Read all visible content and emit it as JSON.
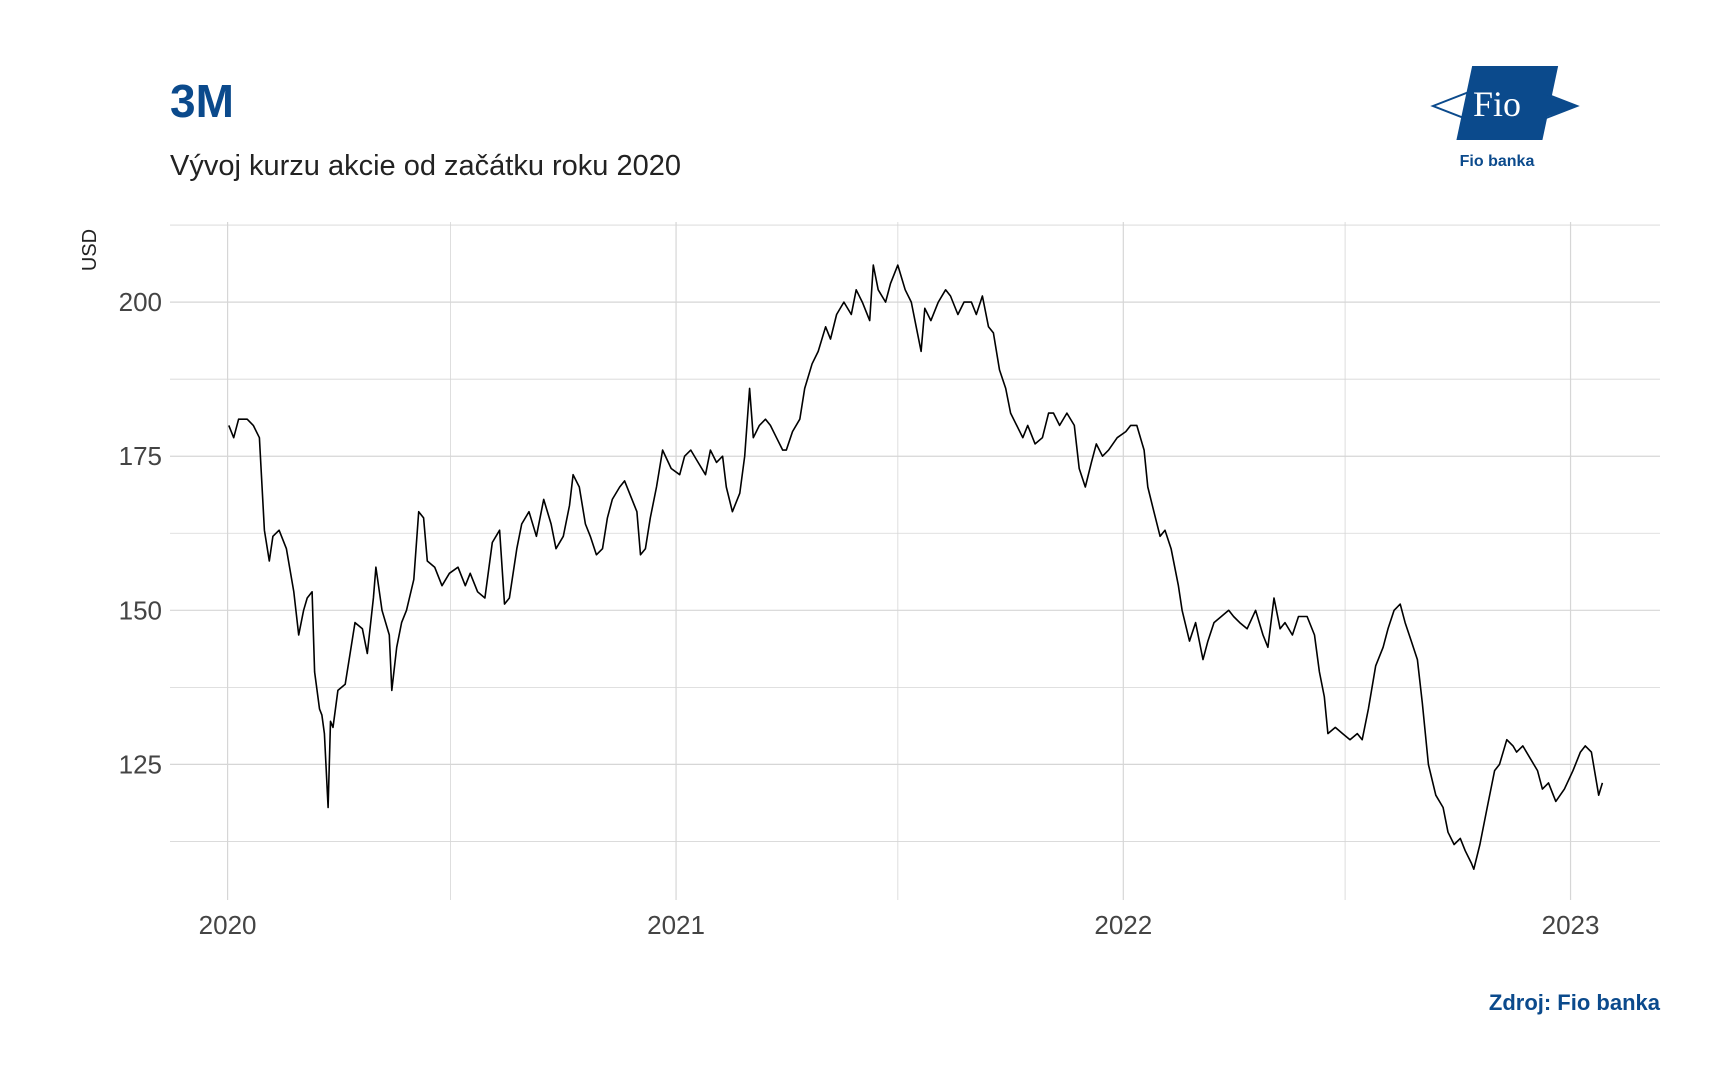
{
  "title": "3M",
  "subtitle": "Vývoj kurzu akcie od začátku roku 2020",
  "source": "Zdroj: Fio banka",
  "logo": {
    "mark_text": "Fio",
    "caption": "Fio banka",
    "brand_color": "#0b4a8c"
  },
  "chart_data": {
    "type": "line",
    "title": "3M",
    "subtitle": "Vývoj kurzu akcie od začátku roku 2020",
    "ylabel": "USD",
    "xlabel": "",
    "x_ticks": [
      "2020",
      "2021",
      "2022",
      "2023"
    ],
    "y_ticks": [
      125,
      150,
      175,
      200
    ],
    "xlim": [
      "2019-11-15",
      "2023-03-15"
    ],
    "ylim": [
      103,
      213
    ],
    "grid": true,
    "line_color": "#000000",
    "series": [
      {
        "points": [
          [
            "2020-01-02",
            180
          ],
          [
            "2020-01-06",
            178
          ],
          [
            "2020-01-10",
            181
          ],
          [
            "2020-01-17",
            181
          ],
          [
            "2020-01-22",
            180
          ],
          [
            "2020-01-27",
            178
          ],
          [
            "2020-01-31",
            163
          ],
          [
            "2020-02-04",
            158
          ],
          [
            "2020-02-07",
            162
          ],
          [
            "2020-02-12",
            163
          ],
          [
            "2020-02-18",
            160
          ],
          [
            "2020-02-24",
            153
          ],
          [
            "2020-02-28",
            146
          ],
          [
            "2020-03-03",
            150
          ],
          [
            "2020-03-06",
            152
          ],
          [
            "2020-03-10",
            153
          ],
          [
            "2020-03-12",
            140
          ],
          [
            "2020-03-16",
            134
          ],
          [
            "2020-03-18",
            133
          ],
          [
            "2020-03-20",
            130
          ],
          [
            "2020-03-23",
            118
          ],
          [
            "2020-03-25",
            132
          ],
          [
            "2020-03-27",
            131
          ],
          [
            "2020-03-31",
            137
          ],
          [
            "2020-04-06",
            138
          ],
          [
            "2020-04-10",
            143
          ],
          [
            "2020-04-14",
            148
          ],
          [
            "2020-04-20",
            147
          ],
          [
            "2020-04-24",
            143
          ],
          [
            "2020-04-29",
            152
          ],
          [
            "2020-05-01",
            157
          ],
          [
            "2020-05-06",
            150
          ],
          [
            "2020-05-12",
            146
          ],
          [
            "2020-05-14",
            137
          ],
          [
            "2020-05-18",
            144
          ],
          [
            "2020-05-22",
            148
          ],
          [
            "2020-05-26",
            150
          ],
          [
            "2020-06-01",
            155
          ],
          [
            "2020-06-05",
            166
          ],
          [
            "2020-06-09",
            165
          ],
          [
            "2020-06-12",
            158
          ],
          [
            "2020-06-18",
            157
          ],
          [
            "2020-06-24",
            154
          ],
          [
            "2020-06-30",
            156
          ],
          [
            "2020-07-07",
            157
          ],
          [
            "2020-07-13",
            154
          ],
          [
            "2020-07-17",
            156
          ],
          [
            "2020-07-23",
            153
          ],
          [
            "2020-07-29",
            152
          ],
          [
            "2020-08-04",
            161
          ],
          [
            "2020-08-10",
            163
          ],
          [
            "2020-08-14",
            151
          ],
          [
            "2020-08-18",
            152
          ],
          [
            "2020-08-24",
            160
          ],
          [
            "2020-08-28",
            164
          ],
          [
            "2020-09-03",
            166
          ],
          [
            "2020-09-09",
            162
          ],
          [
            "2020-09-15",
            168
          ],
          [
            "2020-09-21",
            164
          ],
          [
            "2020-09-25",
            160
          ],
          [
            "2020-10-01",
            162
          ],
          [
            "2020-10-06",
            167
          ],
          [
            "2020-10-09",
            172
          ],
          [
            "2020-10-14",
            170
          ],
          [
            "2020-10-19",
            164
          ],
          [
            "2020-10-23",
            162
          ],
          [
            "2020-10-28",
            159
          ],
          [
            "2020-11-02",
            160
          ],
          [
            "2020-11-06",
            165
          ],
          [
            "2020-11-10",
            168
          ],
          [
            "2020-11-16",
            170
          ],
          [
            "2020-11-20",
            171
          ],
          [
            "2020-11-24",
            169
          ],
          [
            "2020-11-30",
            166
          ],
          [
            "2020-12-03",
            159
          ],
          [
            "2020-12-07",
            160
          ],
          [
            "2020-12-11",
            165
          ],
          [
            "2020-12-16",
            170
          ],
          [
            "2020-12-21",
            176
          ],
          [
            "2020-12-28",
            173
          ],
          [
            "2021-01-04",
            172
          ],
          [
            "2021-01-08",
            175
          ],
          [
            "2021-01-13",
            176
          ],
          [
            "2021-01-19",
            174
          ],
          [
            "2021-01-25",
            172
          ],
          [
            "2021-01-29",
            176
          ],
          [
            "2021-02-03",
            174
          ],
          [
            "2021-02-08",
            175
          ],
          [
            "2021-02-11",
            170
          ],
          [
            "2021-02-16",
            166
          ],
          [
            "2021-02-22",
            169
          ],
          [
            "2021-02-26",
            175
          ],
          [
            "2021-03-02",
            186
          ],
          [
            "2021-03-05",
            178
          ],
          [
            "2021-03-10",
            180
          ],
          [
            "2021-03-15",
            181
          ],
          [
            "2021-03-19",
            180
          ],
          [
            "2021-03-24",
            178
          ],
          [
            "2021-03-29",
            176
          ],
          [
            "2021-04-01",
            176
          ],
          [
            "2021-04-06",
            179
          ],
          [
            "2021-04-12",
            181
          ],
          [
            "2021-04-16",
            186
          ],
          [
            "2021-04-22",
            190
          ],
          [
            "2021-04-27",
            192
          ],
          [
            "2021-05-03",
            196
          ],
          [
            "2021-05-07",
            194
          ],
          [
            "2021-05-12",
            198
          ],
          [
            "2021-05-18",
            200
          ],
          [
            "2021-05-24",
            198
          ],
          [
            "2021-05-28",
            202
          ],
          [
            "2021-06-02",
            200
          ],
          [
            "2021-06-08",
            197
          ],
          [
            "2021-06-11",
            206
          ],
          [
            "2021-06-15",
            202
          ],
          [
            "2021-06-21",
            200
          ],
          [
            "2021-06-25",
            203
          ],
          [
            "2021-07-01",
            206
          ],
          [
            "2021-07-07",
            202
          ],
          [
            "2021-07-12",
            200
          ],
          [
            "2021-07-16",
            196
          ],
          [
            "2021-07-20",
            192
          ],
          [
            "2021-07-23",
            199
          ],
          [
            "2021-07-28",
            197
          ],
          [
            "2021-08-03",
            200
          ],
          [
            "2021-08-09",
            202
          ],
          [
            "2021-08-13",
            201
          ],
          [
            "2021-08-19",
            198
          ],
          [
            "2021-08-24",
            200
          ],
          [
            "2021-08-30",
            200
          ],
          [
            "2021-09-03",
            198
          ],
          [
            "2021-09-08",
            201
          ],
          [
            "2021-09-13",
            196
          ],
          [
            "2021-09-17",
            195
          ],
          [
            "2021-09-22",
            189
          ],
          [
            "2021-09-27",
            186
          ],
          [
            "2021-10-01",
            182
          ],
          [
            "2021-10-06",
            180
          ],
          [
            "2021-10-11",
            178
          ],
          [
            "2021-10-15",
            180
          ],
          [
            "2021-10-21",
            177
          ],
          [
            "2021-10-27",
            178
          ],
          [
            "2021-11-01",
            182
          ],
          [
            "2021-11-05",
            182
          ],
          [
            "2021-11-10",
            180
          ],
          [
            "2021-11-16",
            182
          ],
          [
            "2021-11-22",
            180
          ],
          [
            "2021-11-26",
            173
          ],
          [
            "2021-12-01",
            170
          ],
          [
            "2021-12-06",
            174
          ],
          [
            "2021-12-10",
            177
          ],
          [
            "2021-12-15",
            175
          ],
          [
            "2021-12-20",
            176
          ],
          [
            "2021-12-27",
            178
          ],
          [
            "2022-01-03",
            179
          ],
          [
            "2022-01-07",
            180
          ],
          [
            "2022-01-12",
            180
          ],
          [
            "2022-01-18",
            176
          ],
          [
            "2022-01-21",
            170
          ],
          [
            "2022-01-26",
            166
          ],
          [
            "2022-01-31",
            162
          ],
          [
            "2022-02-04",
            163
          ],
          [
            "2022-02-09",
            160
          ],
          [
            "2022-02-15",
            154
          ],
          [
            "2022-02-18",
            150
          ],
          [
            "2022-02-24",
            145
          ],
          [
            "2022-03-01",
            148
          ],
          [
            "2022-03-07",
            142
          ],
          [
            "2022-03-11",
            145
          ],
          [
            "2022-03-16",
            148
          ],
          [
            "2022-03-22",
            149
          ],
          [
            "2022-03-28",
            150
          ],
          [
            "2022-04-01",
            149
          ],
          [
            "2022-04-06",
            148
          ],
          [
            "2022-04-12",
            147
          ],
          [
            "2022-04-19",
            150
          ],
          [
            "2022-04-25",
            146
          ],
          [
            "2022-04-29",
            144
          ],
          [
            "2022-05-04",
            152
          ],
          [
            "2022-05-09",
            147
          ],
          [
            "2022-05-13",
            148
          ],
          [
            "2022-05-19",
            146
          ],
          [
            "2022-05-24",
            149
          ],
          [
            "2022-05-31",
            149
          ],
          [
            "2022-06-06",
            146
          ],
          [
            "2022-06-10",
            140
          ],
          [
            "2022-06-14",
            136
          ],
          [
            "2022-06-17",
            130
          ],
          [
            "2022-06-23",
            131
          ],
          [
            "2022-06-29",
            130
          ],
          [
            "2022-07-05",
            129
          ],
          [
            "2022-07-11",
            130
          ],
          [
            "2022-07-15",
            129
          ],
          [
            "2022-07-20",
            134
          ],
          [
            "2022-07-26",
            141
          ],
          [
            "2022-08-01",
            144
          ],
          [
            "2022-08-05",
            147
          ],
          [
            "2022-08-10",
            150
          ],
          [
            "2022-08-15",
            151
          ],
          [
            "2022-08-19",
            148
          ],
          [
            "2022-08-24",
            145
          ],
          [
            "2022-08-29",
            142
          ],
          [
            "2022-09-02",
            135
          ],
          [
            "2022-09-07",
            125
          ],
          [
            "2022-09-13",
            120
          ],
          [
            "2022-09-19",
            118
          ],
          [
            "2022-09-23",
            114
          ],
          [
            "2022-09-28",
            112
          ],
          [
            "2022-10-03",
            113
          ],
          [
            "2022-10-07",
            111
          ],
          [
            "2022-10-12",
            109
          ],
          [
            "2022-10-14",
            108
          ],
          [
            "2022-10-19",
            112
          ],
          [
            "2022-10-25",
            118
          ],
          [
            "2022-10-31",
            124
          ],
          [
            "2022-11-04",
            125
          ],
          [
            "2022-11-10",
            129
          ],
          [
            "2022-11-15",
            128
          ],
          [
            "2022-11-18",
            127
          ],
          [
            "2022-11-23",
            128
          ],
          [
            "2022-11-29",
            126
          ],
          [
            "2022-12-05",
            124
          ],
          [
            "2022-12-09",
            121
          ],
          [
            "2022-12-14",
            122
          ],
          [
            "2022-12-20",
            119
          ],
          [
            "2022-12-27",
            121
          ],
          [
            "2023-01-03",
            124
          ],
          [
            "2023-01-09",
            127
          ],
          [
            "2023-01-13",
            128
          ],
          [
            "2023-01-18",
            127
          ],
          [
            "2023-01-24",
            120
          ],
          [
            "2023-01-27",
            122
          ]
        ]
      }
    ]
  }
}
